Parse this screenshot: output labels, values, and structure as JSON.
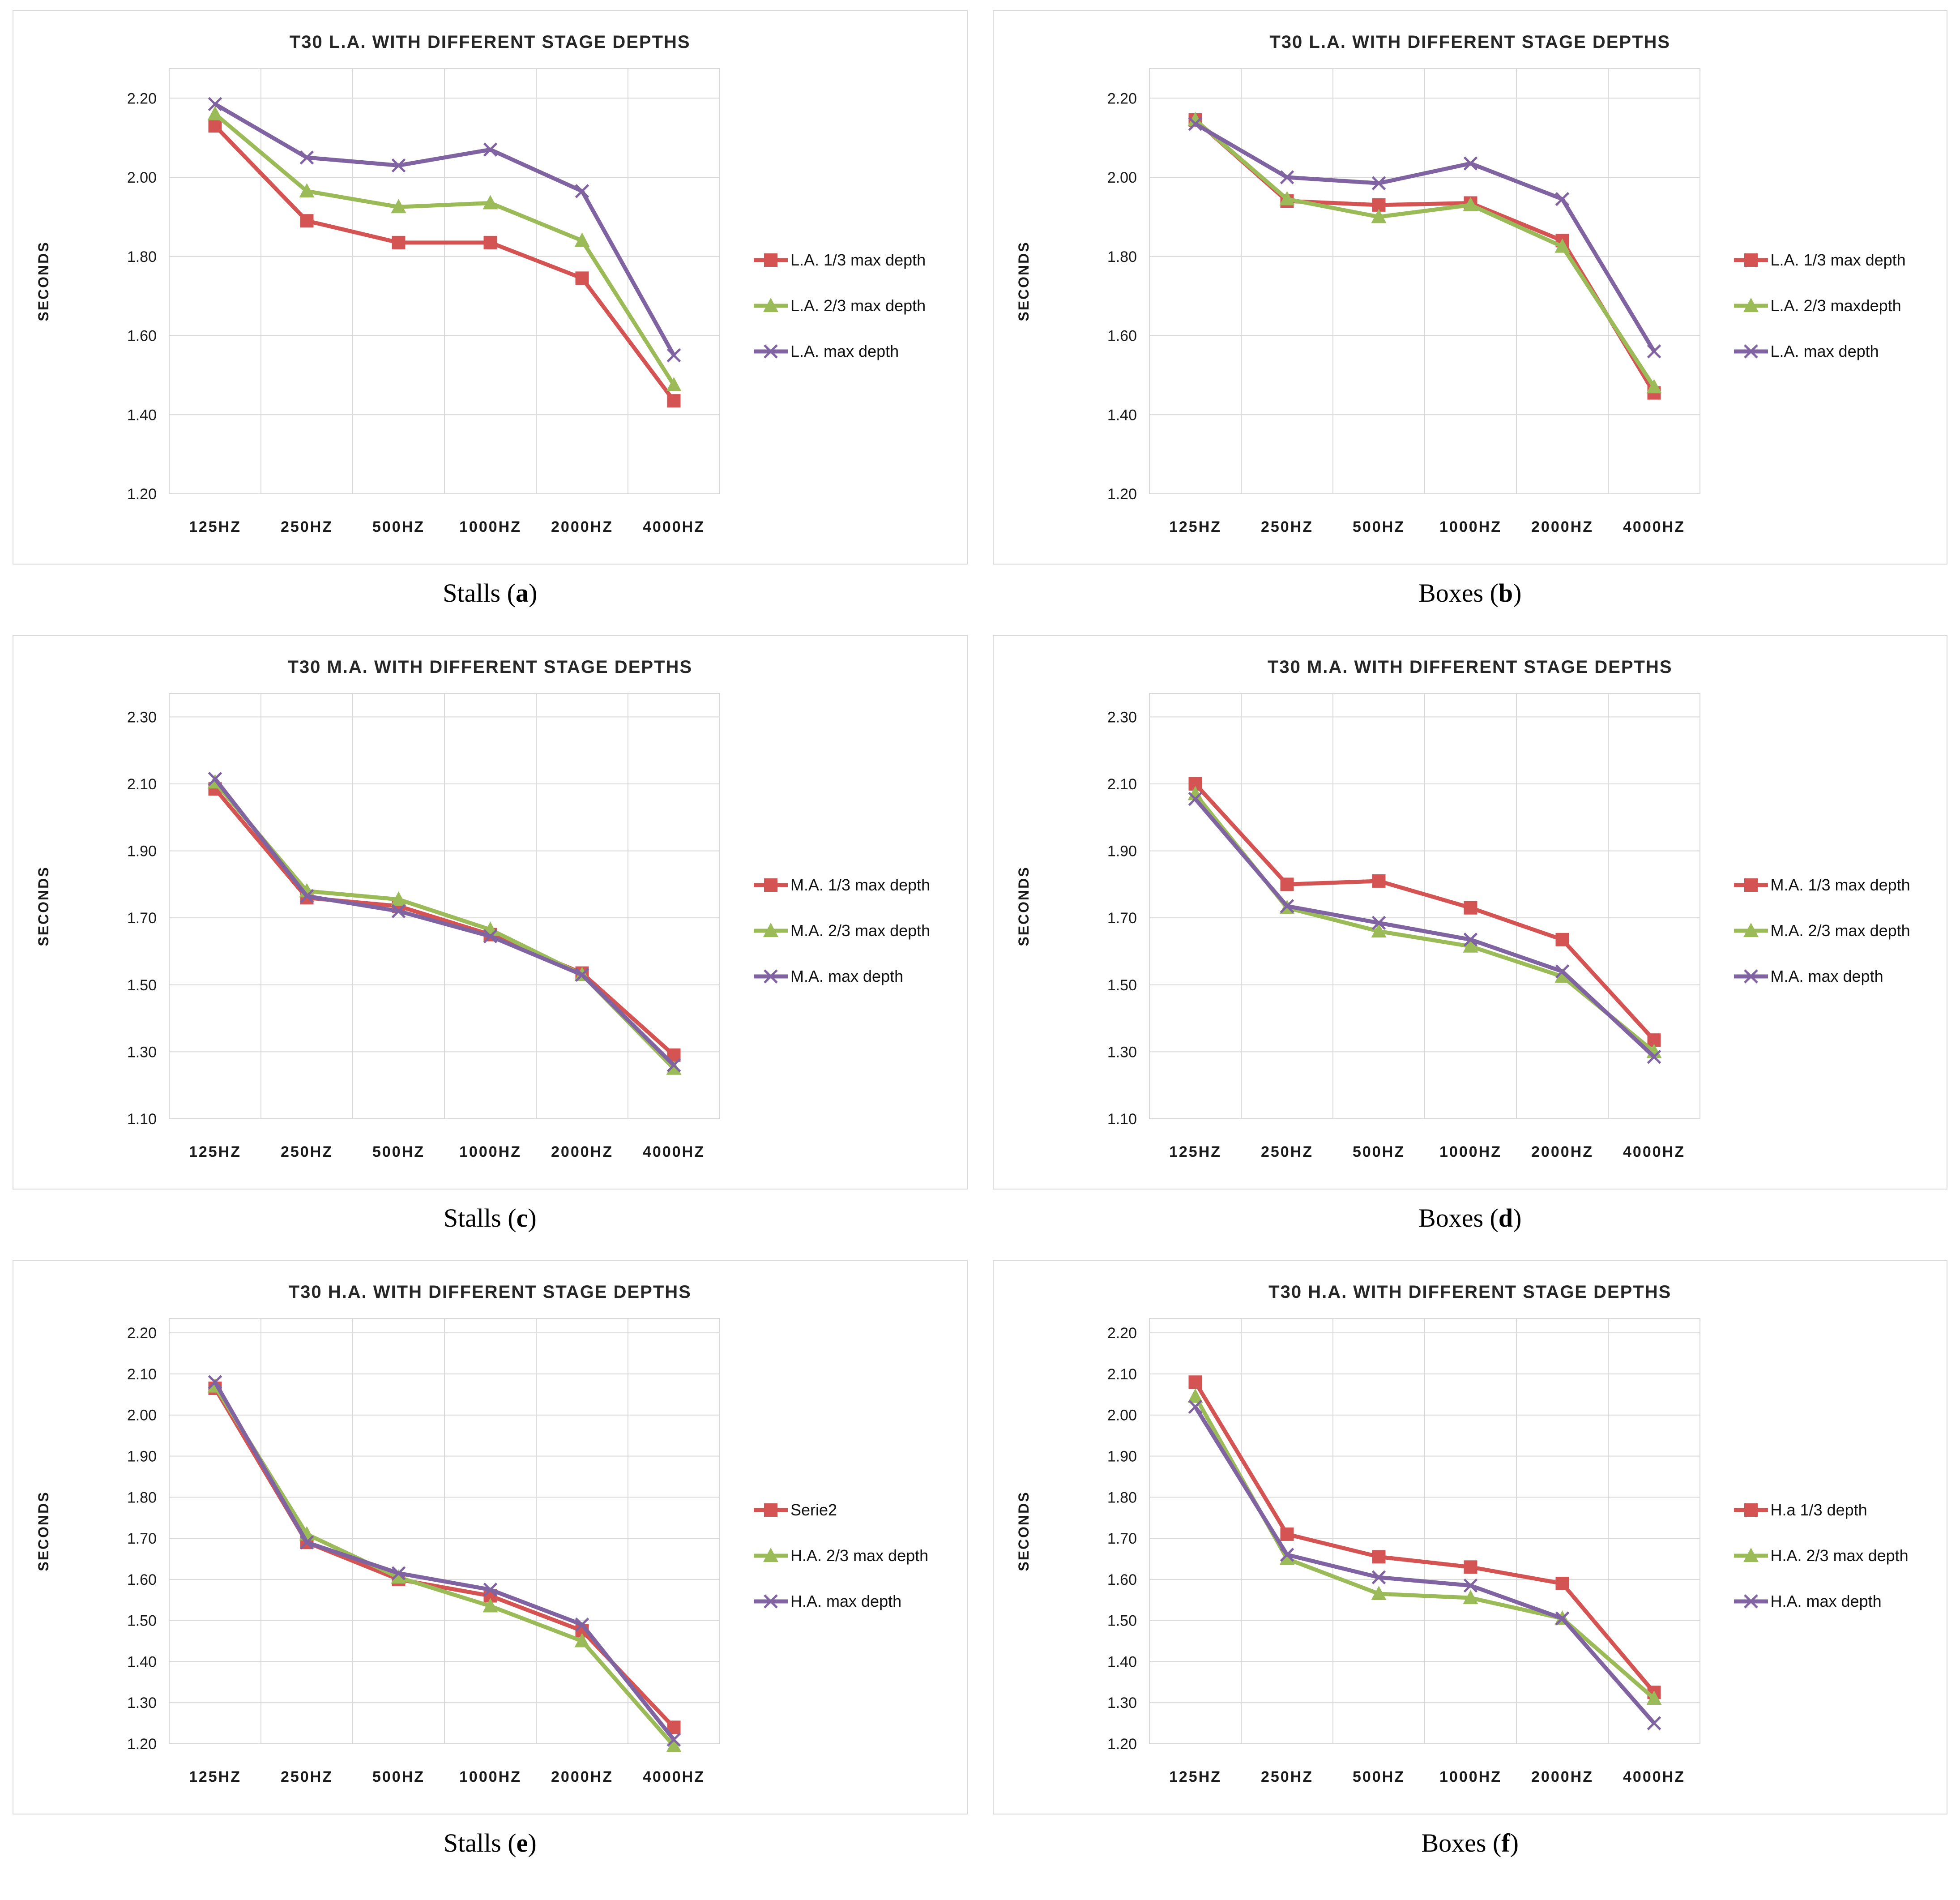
{
  "colors": {
    "grid": "#d9d9d9",
    "tick": "#1a1a1a",
    "title": "#262626",
    "red": "#d35452",
    "green": "#9bbb59",
    "purple": "#8064a2"
  },
  "chart_data": [
    {
      "type": "line",
      "id": "a",
      "title": "T30 L.A. WITH DIFFERENT STAGE DEPTHS",
      "ylabel": "SECONDS",
      "caption_prefix": "Stalls (",
      "caption_letter": "a",
      "caption_suffix": ")",
      "categories": [
        "125HZ",
        "250HZ",
        "500HZ",
        "1000HZ",
        "2000HZ",
        "4000HZ"
      ],
      "axis": {
        "min": 1.2,
        "max": 2.2,
        "step": 0.2,
        "top_pad": 0.075
      },
      "grid": true,
      "legend_position": "right",
      "series": [
        {
          "name": "L.A. 1/3 max depth",
          "color": "#d35452",
          "marker": "square",
          "values": [
            2.13,
            1.89,
            1.835,
            1.835,
            1.745,
            1.435
          ]
        },
        {
          "name": "L.A. 2/3 max depth",
          "color": "#9bbb59",
          "marker": "triangle",
          "values": [
            2.16,
            1.965,
            1.925,
            1.935,
            1.84,
            1.475
          ]
        },
        {
          "name": "L.A. max depth",
          "color": "#8064a2",
          "marker": "x",
          "values": [
            2.185,
            2.05,
            2.03,
            2.07,
            1.965,
            1.55
          ]
        }
      ]
    },
    {
      "type": "line",
      "id": "b",
      "title": "T30 L.A. WITH DIFFERENT STAGE DEPTHS",
      "ylabel": "SECONDS",
      "caption_prefix": "Boxes (",
      "caption_letter": "b",
      "caption_suffix": ")",
      "categories": [
        "125HZ",
        "250HZ",
        "500HZ",
        "1000HZ",
        "2000HZ",
        "4000HZ"
      ],
      "axis": {
        "min": 1.2,
        "max": 2.2,
        "step": 0.2,
        "top_pad": 0.075
      },
      "grid": true,
      "legend_position": "right",
      "series": [
        {
          "name": "L.A. 1/3 max depth",
          "color": "#d35452",
          "marker": "square",
          "values": [
            2.145,
            1.94,
            1.93,
            1.935,
            1.84,
            1.455
          ]
        },
        {
          "name": "L.A. 2/3 maxdepth",
          "color": "#9bbb59",
          "marker": "triangle",
          "values": [
            2.145,
            1.945,
            1.9,
            1.93,
            1.825,
            1.47
          ]
        },
        {
          "name": "L.A. max depth",
          "color": "#8064a2",
          "marker": "x",
          "values": [
            2.135,
            2.0,
            1.985,
            2.035,
            1.945,
            1.56
          ]
        }
      ]
    },
    {
      "type": "line",
      "id": "c",
      "title": "T30 M.A. WITH DIFFERENT STAGE DEPTHS",
      "ylabel": "SECONDS",
      "caption_prefix": "Stalls (",
      "caption_letter": "c",
      "caption_suffix": ")",
      "categories": [
        "125HZ",
        "250HZ",
        "500HZ",
        "1000HZ",
        "2000HZ",
        "4000HZ"
      ],
      "axis": {
        "min": 1.1,
        "max": 2.3,
        "step": 0.2,
        "top_pad": 0.07
      },
      "grid": true,
      "legend_position": "right",
      "series": [
        {
          "name": "M.A. 1/3 max depth",
          "color": "#d35452",
          "marker": "square",
          "values": [
            2.085,
            1.76,
            1.735,
            1.65,
            1.535,
            1.29
          ]
        },
        {
          "name": "M.A. 2/3 max depth",
          "color": "#9bbb59",
          "marker": "triangle",
          "values": [
            2.105,
            1.78,
            1.755,
            1.665,
            1.53,
            1.25
          ]
        },
        {
          "name": "M.A. max depth",
          "color": "#8064a2",
          "marker": "x",
          "values": [
            2.115,
            1.765,
            1.72,
            1.645,
            1.53,
            1.26
          ]
        }
      ]
    },
    {
      "type": "line",
      "id": "d",
      "title": "T30 M.A. WITH DIFFERENT STAGE DEPTHS",
      "ylabel": "SECONDS",
      "caption_prefix": "Boxes (",
      "caption_letter": "d",
      "caption_suffix": ")",
      "categories": [
        "125HZ",
        "250HZ",
        "500HZ",
        "1000HZ",
        "2000HZ",
        "4000HZ"
      ],
      "axis": {
        "min": 1.1,
        "max": 2.3,
        "step": 0.2,
        "top_pad": 0.07
      },
      "grid": true,
      "legend_position": "right",
      "series": [
        {
          "name": "M.A. 1/3 max depth",
          "color": "#d35452",
          "marker": "square",
          "values": [
            2.1,
            1.8,
            1.81,
            1.73,
            1.635,
            1.335
          ]
        },
        {
          "name": "M.A. 2/3 max depth",
          "color": "#9bbb59",
          "marker": "triangle",
          "values": [
            2.07,
            1.73,
            1.66,
            1.615,
            1.525,
            1.3
          ]
        },
        {
          "name": "M.A. max depth",
          "color": "#8064a2",
          "marker": "x",
          "values": [
            2.055,
            1.735,
            1.685,
            1.635,
            1.54,
            1.285
          ]
        }
      ]
    },
    {
      "type": "line",
      "id": "e",
      "title": "T30 H.A. WITH DIFFERENT STAGE DEPTHS",
      "ylabel": "SECONDS",
      "caption_prefix": "Stalls (",
      "caption_letter": "e",
      "caption_suffix": ")",
      "categories": [
        "125HZ",
        "250HZ",
        "500HZ",
        "1000HZ",
        "2000HZ",
        "4000HZ"
      ],
      "axis": {
        "min": 1.2,
        "max": 2.2,
        "step": 0.1,
        "top_pad": 0.035
      },
      "grid": true,
      "legend_position": "right",
      "series": [
        {
          "name": "Serie2",
          "color": "#d35452",
          "marker": "square",
          "values": [
            2.065,
            1.69,
            1.6,
            1.56,
            1.475,
            1.24
          ]
        },
        {
          "name": "H.A. 2/3 max depth",
          "color": "#9bbb59",
          "marker": "triangle",
          "values": [
            2.07,
            1.71,
            1.605,
            1.535,
            1.45,
            1.195
          ]
        },
        {
          "name": "H.A. max depth",
          "color": "#8064a2",
          "marker": "x",
          "values": [
            2.08,
            1.69,
            1.615,
            1.575,
            1.49,
            1.21
          ]
        }
      ]
    },
    {
      "type": "line",
      "id": "f",
      "title": "T30 H.A. WITH DIFFERENT STAGE DEPTHS",
      "ylabel": "SECONDS",
      "caption_prefix": "Boxes (",
      "caption_letter": "f",
      "caption_suffix": ")",
      "categories": [
        "125HZ",
        "250HZ",
        "500HZ",
        "1000HZ",
        "2000HZ",
        "4000HZ"
      ],
      "axis": {
        "min": 1.2,
        "max": 2.2,
        "step": 0.1,
        "top_pad": 0.035
      },
      "grid": true,
      "legend_position": "right",
      "series": [
        {
          "name": "H.a 1/3 depth",
          "color": "#d35452",
          "marker": "square",
          "values": [
            2.08,
            1.71,
            1.655,
            1.63,
            1.59,
            1.325
          ]
        },
        {
          "name": "H.A. 2/3 max depth",
          "color": "#9bbb59",
          "marker": "triangle",
          "values": [
            2.045,
            1.65,
            1.565,
            1.555,
            1.505,
            1.31
          ]
        },
        {
          "name": "H.A. max depth",
          "color": "#8064a2",
          "marker": "x",
          "values": [
            2.02,
            1.66,
            1.605,
            1.585,
            1.505,
            1.25
          ]
        }
      ]
    }
  ]
}
